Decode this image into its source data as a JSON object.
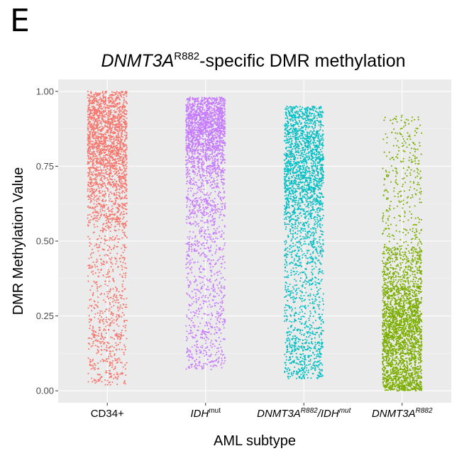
{
  "panel_label": "E",
  "chart_data": {
    "type": "scatter",
    "subtype": "jitter strip plot",
    "title": {
      "gene": "DNMT3A",
      "superscript": "R882",
      "rest": "-specific DMR methylation"
    },
    "xlabel": "AML subtype",
    "ylabel": "DMR Methylation Value",
    "ylim": [
      -0.04,
      1.04
    ],
    "yticks": [
      0.0,
      0.25,
      0.5,
      0.75,
      1.0
    ],
    "ytick_labels": [
      "0.00",
      "0.25",
      "0.50",
      "0.75",
      "1.00"
    ],
    "grid": true,
    "legend": "none",
    "categories": [
      {
        "parts": [
          {
            "text": "CD34+",
            "italic": false,
            "sup": false
          }
        ]
      },
      {
        "parts": [
          {
            "text": "IDH",
            "italic": true,
            "sup": false
          },
          {
            "text": "mut",
            "italic": false,
            "sup": true
          }
        ]
      },
      {
        "parts": [
          {
            "text": "DNMT3A",
            "italic": true,
            "sup": false
          },
          {
            "text": "R882",
            "italic": true,
            "sup": true
          },
          {
            "text": "/IDH",
            "italic": true,
            "sup": false
          },
          {
            "text": "mut",
            "italic": true,
            "sup": true
          }
        ]
      },
      {
        "parts": [
          {
            "text": "DNMT3A",
            "italic": true,
            "sup": false
          },
          {
            "text": "R882",
            "italic": true,
            "sup": true
          }
        ]
      }
    ],
    "series": [
      {
        "category_index": 0,
        "color": "#F8766D",
        "n_points": 2600,
        "distribution": {
          "mode": 0.75,
          "center_range": [
            0.45,
            0.95
          ],
          "min": 0.02,
          "max": 1.0
        },
        "quantiles": [
          0.02,
          0.25,
          0.55,
          0.68,
          0.76,
          0.82,
          0.88,
          0.93,
          1.0
        ]
      },
      {
        "category_index": 1,
        "color": "#C77CFF",
        "n_points": 2600,
        "distribution": {
          "mode": 0.82,
          "center_range": [
            0.5,
            0.95
          ],
          "min": 0.07,
          "max": 0.98
        },
        "quantiles": [
          0.07,
          0.3,
          0.58,
          0.72,
          0.8,
          0.85,
          0.89,
          0.93,
          0.98
        ]
      },
      {
        "category_index": 2,
        "color": "#00BFC4",
        "n_points": 2600,
        "distribution": {
          "mode": 0.7,
          "center_range": [
            0.4,
            0.92
          ],
          "min": 0.04,
          "max": 0.95
        },
        "quantiles": [
          0.04,
          0.18,
          0.42,
          0.57,
          0.66,
          0.73,
          0.8,
          0.87,
          0.95
        ]
      },
      {
        "category_index": 3,
        "color": "#7CAE00",
        "n_points": 2800,
        "distribution": {
          "mode": 0.22,
          "center_range": [
            0.05,
            0.55
          ],
          "min": 0.0,
          "max": 0.92
        },
        "quantiles": [
          0.0,
          0.05,
          0.12,
          0.18,
          0.23,
          0.28,
          0.35,
          0.48,
          0.92
        ]
      }
    ]
  }
}
